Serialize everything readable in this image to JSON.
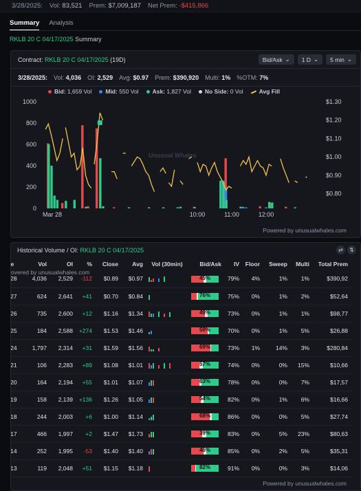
{
  "topbar": {
    "date": "3/28/2025:",
    "vol_label": "Vol:",
    "vol": "83,521",
    "prem_label": "Prem:",
    "prem": "$7,009,187",
    "netprem_label": "Net Prem:",
    "netprem": "-$415,866"
  },
  "tabs": [
    {
      "label": "Summary"
    },
    {
      "label": "Analysis"
    }
  ],
  "subtitle": {
    "contract": "RKLB 20 C 04/17/2025",
    "suffix": "Summary"
  },
  "chart_panel": {
    "contract_label": "Contract:",
    "contract": "RKLB 20 C 04/17/2025",
    "dte": "(19D)",
    "controls": [
      {
        "label": "Bid/Ask"
      },
      {
        "label": "1 D"
      },
      {
        "label": "5 min"
      }
    ],
    "stats": {
      "date": "3/28/2025:",
      "vol_label": "Vol:",
      "vol": "4,036",
      "oi_label": "OI:",
      "oi": "2,529",
      "avg_label": "Avg:",
      "avg": "$0.97",
      "prem_label": "Prem:",
      "prem": "$390,920",
      "multi_label": "Multi:",
      "multi": "1%",
      "otm_label": "%OTM:",
      "otm": "7%"
    },
    "legend": [
      {
        "label": "Bid:",
        "value": "1,659 Vol",
        "color": "#e5484d"
      },
      {
        "label": "Mid:",
        "value": "550 Vol",
        "color": "#3b82f6"
      },
      {
        "label": "Ask:",
        "value": "1,827 Vol",
        "color": "#2ecc8a"
      },
      {
        "label": "No Side:",
        "value": "0 Vol",
        "color": "#d5d8df"
      },
      {
        "label": "Avg Fill",
        "value": "",
        "color": "#f0c24b"
      }
    ],
    "watermark": "Unusual Whales",
    "powered": "Powered by unusualwhales.com"
  },
  "chart_data": {
    "type": "bar",
    "yleft_ticks": [
      "0",
      "200",
      "400",
      "600",
      "800",
      "1000"
    ],
    "yleft_range": [
      0,
      1000
    ],
    "yright_ticks": [
      "$0.80",
      "$0.90",
      "$1.00",
      "$1.10",
      "$1.20",
      "$1.30"
    ],
    "yright_range": [
      0.72,
      1.3
    ],
    "x_ticks": [
      {
        "label": "Mar 28",
        "t": 0
      },
      {
        "label": "10:00",
        "t": 54
      },
      {
        "label": "11:00",
        "t": 66
      },
      {
        "label": "12:00",
        "t": 78
      }
    ],
    "x_range": [
      0,
      96
    ],
    "series": [
      {
        "name": "Bid",
        "color": "#e5484d",
        "points": [
          [
            2,
            610
          ],
          [
            7,
            50
          ],
          [
            14,
            780
          ],
          [
            16,
            20
          ],
          [
            19,
            750
          ],
          [
            25,
            10
          ],
          [
            53,
            15
          ],
          [
            64,
            470
          ],
          [
            70,
            10
          ],
          [
            76,
            20
          ],
          [
            80,
            50
          ],
          [
            85,
            15
          ]
        ]
      },
      {
        "name": "Mid",
        "color": "#3b82f6",
        "points": [
          [
            63,
            260
          ],
          [
            64,
            200
          ],
          [
            70,
            15
          ],
          [
            71,
            10
          ],
          [
            78,
            10
          ]
        ]
      },
      {
        "name": "Ask",
        "color": "#2ecc8a",
        "points": [
          [
            2,
            600
          ],
          [
            3,
            400
          ],
          [
            4,
            120
          ],
          [
            5,
            80
          ],
          [
            8,
            70
          ],
          [
            11,
            80
          ],
          [
            15,
            15
          ],
          [
            20,
            470
          ],
          [
            21,
            20
          ],
          [
            30,
            10
          ],
          [
            37,
            10
          ],
          [
            42,
            10
          ],
          [
            47,
            10
          ],
          [
            48,
            15
          ],
          [
            53,
            10
          ],
          [
            62,
            260
          ],
          [
            63,
            250
          ],
          [
            64,
            80
          ],
          [
            69,
            15
          ],
          [
            79,
            60
          ],
          [
            80,
            55
          ],
          [
            88,
            10
          ]
        ]
      }
    ],
    "avg_fill": [
      [
        [
          1,
          1.15
        ],
        [
          2,
          1.18
        ],
        [
          3,
          1.12
        ],
        [
          4,
          1.05
        ],
        [
          5,
          0.98
        ],
        [
          6,
          1.02
        ],
        [
          7,
          1.1
        ]
      ],
      [
        [
          8,
          1.16
        ],
        [
          9,
          1.08
        ],
        [
          10,
          1.0
        ],
        [
          11,
          1.02
        ],
        [
          12,
          0.93
        ],
        [
          13,
          0.95
        ],
        [
          14,
          1.05
        ],
        [
          15,
          0.9
        ],
        [
          16,
          0.85
        ],
        [
          17,
          0.83
        ]
      ],
      [
        [
          18,
          0.96
        ],
        [
          19,
          1.08
        ],
        [
          20,
          1.24
        ],
        [
          21,
          1.2
        ]
      ],
      [
        [
          24,
          0.92
        ],
        [
          25,
          0.92
        ],
        [
          26,
          0.88
        ]
      ],
      [
        [
          28,
          1.02
        ],
        [
          29,
          1.02
        ]
      ],
      [
        [
          31,
          0.95
        ],
        [
          33,
          1.0
        ],
        [
          34,
          0.99
        ],
        [
          35,
          0.96
        ],
        [
          36,
          0.92
        ],
        [
          37,
          0.9
        ],
        [
          38,
          0.85
        ],
        [
          39,
          0.81
        ]
      ],
      [
        [
          41,
          0.92
        ],
        [
          42,
          0.94
        ],
        [
          43,
          0.91
        ]
      ],
      [
        [
          44,
          0.86
        ],
        [
          45,
          0.84
        ],
        [
          46,
          0.93
        ]
      ],
      [
        [
          48,
          0.87
        ],
        [
          49,
          0.85
        ]
      ],
      [
        [
          51,
          0.99
        ],
        [
          52,
          1.0
        ]
      ],
      [
        [
          54,
          0.97
        ],
        [
          55,
          0.92
        ],
        [
          56,
          0.96
        ],
        [
          57,
          0.95
        ],
        [
          58,
          0.9
        ],
        [
          59,
          0.94
        ],
        [
          60,
          0.97
        ],
        [
          61,
          0.92
        ],
        [
          62,
          0.89
        ],
        [
          63,
          0.86
        ],
        [
          64,
          0.82
        ],
        [
          65,
          0.84
        ],
        [
          66,
          0.83
        ]
      ],
      [
        [
          69,
          0.95
        ],
        [
          70,
          0.98
        ],
        [
          71,
          0.96
        ],
        [
          72,
          1.0
        ],
        [
          73,
          0.92
        ],
        [
          74,
          0.95
        ],
        [
          75,
          0.98
        ],
        [
          76,
          0.95
        ],
        [
          77,
          0.94
        ],
        [
          78,
          0.9
        ],
        [
          79,
          0.96
        ],
        [
          80,
          0.95
        ]
      ],
      [
        [
          83,
          0.99
        ],
        [
          84,
          0.94
        ],
        [
          85,
          0.9
        ],
        [
          86,
          0.86
        ]
      ],
      [
        [
          88,
          0.87
        ],
        [
          89,
          0.86
        ]
      ],
      [
        [
          92,
          0.89
        ]
      ]
    ]
  },
  "hv_panel": {
    "title": "Historical Volume / OI:",
    "contract": "RKLB 20 C 04/17/2025",
    "overlay": "overed by unusualwhales.com",
    "powered": "Powered by unusualwhales.com",
    "headers": [
      "ate",
      "Vol",
      "OI",
      "%",
      "Close",
      "Avg",
      "Vol (30min)",
      "Bid/Ask",
      "IV",
      "Floor",
      "Sweep",
      "Multi",
      "Total Prem"
    ],
    "rows": [
      {
        "date": "3/28",
        "vol": "4,036",
        "oi": "2,529",
        "chg": "-112",
        "close": "$0.89",
        "avg": "$0.97",
        "spark": [
          [
            3,
            1
          ],
          [
            2,
            2
          ],
          [
            1,
            2
          ],
          [
            1,
            0
          ],
          [
            0,
            1
          ]
        ],
        "bid": 0.45,
        "ask_pct": 0.45,
        "label": "45%",
        "iv": "79%",
        "floor": "4%",
        "sweep": "1%",
        "multi": "1%",
        "prem": "$390,92"
      },
      {
        "date": "3/27",
        "vol": "624",
        "oi": "2,641",
        "chg": "+41",
        "close": "$0.70",
        "avg": "$0.84",
        "spark": [
          [
            3,
            3
          ]
        ],
        "bid": 0.2,
        "ask_pct": 0.76,
        "label": "76%",
        "iv": "75%",
        "floor": "0%",
        "sweep": "1%",
        "multi": "2%",
        "prem": "$52,64"
      },
      {
        "date": "3/26",
        "vol": "735",
        "oi": "2,600",
        "chg": "+12",
        "close": "$1.16",
        "avg": "$1.34",
        "spark": [
          [
            0,
            2
          ],
          [
            1,
            1
          ],
          [
            1,
            0
          ],
          [
            0,
            1
          ],
          [
            1,
            2
          ],
          [
            3,
            3
          ]
        ],
        "bid": 0.49,
        "ask_pct": 0.4,
        "label": "49%",
        "iv": "73%",
        "floor": "0%",
        "sweep": "1%",
        "multi": "1%",
        "prem": "$98,77"
      },
      {
        "date": "3/25",
        "vol": "184",
        "oi": "2,588",
        "chg": "+274",
        "close": "$1.53",
        "avg": "$1.46",
        "spark": [
          [
            2,
            1
          ],
          [
            1,
            0
          ]
        ],
        "bid": 0.59,
        "ask_pct": 0.35,
        "label": "59%",
        "iv": "70%",
        "floor": "0%",
        "sweep": "1%",
        "multi": "5%",
        "prem": "$26,88"
      },
      {
        "date": "3/24",
        "vol": "1,797",
        "oi": "2,314",
        "chg": "+31",
        "close": "$1.59",
        "avg": "$1.56",
        "spark": [
          [
            3,
            2
          ],
          [
            2,
            1
          ],
          [
            2,
            1
          ],
          [
            1,
            2
          ]
        ],
        "bid": 0.69,
        "ask_pct": 0.28,
        "label": "69%",
        "iv": "73%",
        "floor": "1%",
        "sweep": "14%",
        "multi": "3%",
        "prem": "$280,84"
      },
      {
        "date": "3/21",
        "vol": "106",
        "oi": "2,283",
        "chg": "+89",
        "close": "$1.08",
        "avg": "$1.01",
        "spark": [
          [
            0,
            2
          ],
          [
            1,
            0
          ],
          [
            0,
            1
          ],
          [
            1,
            2
          ],
          [
            0,
            1
          ],
          [
            0,
            2
          ]
        ],
        "bid": 0.3,
        "ask_pct": 0.57,
        "label": "57%",
        "iv": "74%",
        "floor": "0%",
        "sweep": "0%",
        "multi": "15%",
        "prem": "$10,66"
      },
      {
        "date": "3/20",
        "vol": "164",
        "oi": "2,194",
        "chg": "+55",
        "close": "$1.01",
        "avg": "$1.07",
        "spark": [
          [
            1,
            0
          ],
          [
            0,
            1
          ],
          [
            0,
            2
          ]
        ],
        "bid": 0.3,
        "ask_pct": 0.63,
        "label": "63%",
        "iv": "78%",
        "floor": "0%",
        "sweep": "0%",
        "multi": "7%",
        "prem": "$17,57"
      },
      {
        "date": "3/19",
        "vol": "158",
        "oi": "2,139",
        "chg": "+136",
        "close": "$1.26",
        "avg": "$1.05",
        "spark": [
          [
            1,
            0
          ],
          [
            0,
            1
          ],
          [
            0,
            2
          ]
        ],
        "bid": 0.35,
        "ask_pct": 0.54,
        "label": "54%",
        "iv": "82%",
        "floor": "0%",
        "sweep": "1%",
        "multi": "6%",
        "prem": "$16,66"
      },
      {
        "date": "3/18",
        "vol": "244",
        "oi": "2,003",
        "chg": "+6",
        "close": "$1.00",
        "avg": "$1.14",
        "spark": [
          [
            2,
            0
          ],
          [
            1,
            1
          ],
          [
            0,
            1
          ]
        ],
        "bid": 0.68,
        "ask_pct": 0.25,
        "label": "68%",
        "iv": "86%",
        "floor": "0%",
        "sweep": "0%",
        "multi": "5%",
        "prem": "$27,74"
      },
      {
        "date": "3/17",
        "vol": "466",
        "oi": "1,997",
        "chg": "+2",
        "close": "$1.47",
        "avg": "$1.73",
        "spark": [
          [
            1,
            2
          ],
          [
            0,
            1
          ],
          [
            0,
            1
          ]
        ],
        "bid": 0.39,
        "ask_pct": 0.45,
        "label": "39%",
        "iv": "83%",
        "floor": "0%",
        "sweep": "5%",
        "multi": "23%",
        "prem": "$80,63"
      },
      {
        "date": "3/14",
        "vol": "252",
        "oi": "1,995",
        "chg": "-53",
        "close": "$1.40",
        "avg": "$1.40",
        "spark": [
          [
            1,
            0
          ],
          [
            0,
            2
          ],
          [
            0,
            1
          ]
        ],
        "bid": 0.46,
        "ask_pct": 0.45,
        "label": "46%",
        "iv": "85%",
        "floor": "0%",
        "sweep": "2%",
        "multi": "5%",
        "prem": "$35,31"
      },
      {
        "date": "3/13",
        "vol": "119",
        "oi": "2,048",
        "chg": "+51",
        "close": "$1.15",
        "avg": "$1.18",
        "spark": [
          [
            0,
            2
          ]
        ],
        "bid": 0.15,
        "ask_pct": 0.82,
        "label": "82%",
        "iv": "91%",
        "floor": "0%",
        "sweep": "0%",
        "multi": "3%",
        "prem": "$14,06"
      }
    ]
  }
}
